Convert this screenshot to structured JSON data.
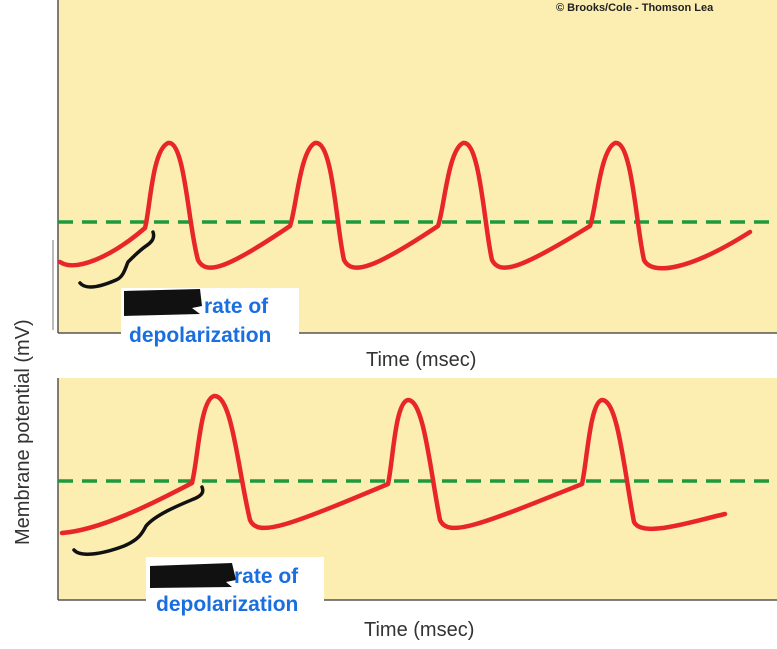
{
  "copyright": "© Brooks/Cole - Thomson Lea",
  "y_axis_label": "Membrane potential (mV)",
  "colors": {
    "panel_bg": "#fbeeb0",
    "trace": "#e8262a",
    "threshold": "#1e9a3c",
    "annotation_text": "#1a6fe0",
    "redaction": "#111111"
  },
  "chart_data": [
    {
      "type": "line",
      "xlabel": "Time (msec)",
      "ylabel": "Membrane potential (mV)",
      "threshold_line": "dashed",
      "series": [
        {
          "x": [
            0,
            1,
            2,
            2.6,
            3,
            3.2,
            3.6,
            4.2,
            5,
            6,
            7,
            7.6,
            8.2,
            8.6,
            9,
            9.5,
            10,
            11,
            12.5,
            13.4,
            13.8,
            14.4,
            15,
            16,
            17,
            18.6,
            19.6,
            20,
            20.6,
            21,
            22,
            24,
            25.5
          ],
          "y": [
            20,
            28,
            42,
            50,
            65,
            90,
            92,
            60,
            20,
            30,
            42,
            50,
            90,
            92,
            55,
            20,
            24,
            38,
            50,
            90,
            92,
            55,
            20,
            30,
            40,
            50,
            90,
            92,
            55,
            20,
            25,
            35,
            45
          ]
        }
      ],
      "annotation": {
        "visible": "rate of",
        "line2": "depolarization",
        "redacted": true
      }
    },
    {
      "type": "line",
      "xlabel": "Time (msec)",
      "ylabel": "Membrane potential (mV)",
      "threshold_line": "dashed",
      "series": [
        {
          "x": [
            0,
            1,
            3,
            5,
            5.4,
            5.8,
            6.6,
            7.3,
            8,
            9,
            11,
            12.8,
            13.2,
            13.6,
            14.4,
            15,
            16,
            18,
            20.5,
            21,
            21.4,
            22,
            22.6,
            23,
            25
          ],
          "y": [
            20,
            22,
            35,
            50,
            80,
            92,
            85,
            30,
            20,
            24,
            40,
            50,
            90,
            92,
            55,
            22,
            26,
            38,
            50,
            90,
            92,
            55,
            22,
            22,
            30
          ]
        }
      ],
      "annotation": {
        "visible": "rate of",
        "line2": "depolarization",
        "redacted": true
      }
    }
  ]
}
